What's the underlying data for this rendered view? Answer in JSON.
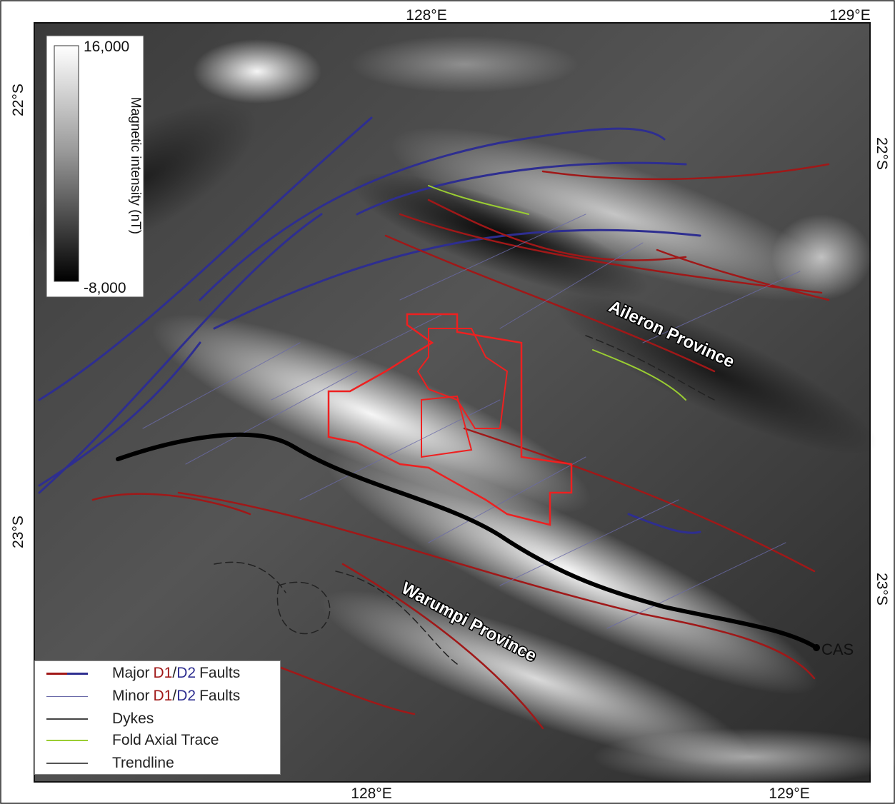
{
  "axes": {
    "top": [
      "128°E",
      "129°E"
    ],
    "bottom": [
      "128°E",
      "129°E"
    ],
    "left": [
      "22°S",
      "23°S"
    ],
    "right": [
      "22°S",
      "23°S"
    ]
  },
  "colorbar": {
    "max": "16,000",
    "min": "-8,000",
    "title": "Magnetic intensity (nT)"
  },
  "legend": [
    {
      "parts": [
        "Major",
        "D1",
        "/",
        "D2",
        "Faults"
      ]
    },
    {
      "parts": [
        "Minor",
        "D1",
        "/",
        "D2",
        "Faults"
      ]
    },
    {
      "parts": [
        "Dykes"
      ]
    },
    {
      "parts": [
        "Fold Axial Trace"
      ]
    },
    {
      "parts": [
        "Trendline"
      ]
    }
  ],
  "annotations": {
    "aileron": "Aileron Province",
    "warumpi": "Warumpi Province",
    "cas": "CAS"
  }
}
